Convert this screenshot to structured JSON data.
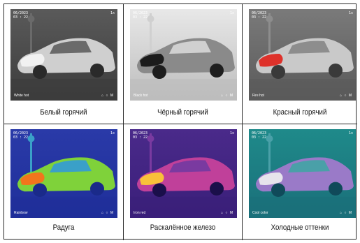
{
  "panels": [
    {
      "caption": "Белый горячий",
      "osd": {
        "date": "06/2023\n03 : 22",
        "status": "1x",
        "palette_label": "White hot",
        "icons": "⌂ ○ M"
      }
    },
    {
      "caption": "Чёрный горячий",
      "osd": {
        "date": "06/2023\n03 : 22",
        "status": "1x",
        "palette_label": "Black hot",
        "icons": "⌂ ○ M"
      }
    },
    {
      "caption": "Красный горячий",
      "osd": {
        "date": "06/2023\n03 : 22",
        "status": "1x",
        "palette_label": "Fire hot",
        "icons": "⌂ ○ M"
      }
    },
    {
      "caption": "Радуга",
      "osd": {
        "date": "06/2023\n03 : 22",
        "status": "1x",
        "palette_label": "Rainbow",
        "icons": "⌂ ○ M"
      }
    },
    {
      "caption": "Раскалённое железо",
      "osd": {
        "date": "06/2023\n03 : 22",
        "status": "1x",
        "palette_label": "Iron red",
        "icons": "⌂ ○ M"
      }
    },
    {
      "caption": "Холодные оттенки",
      "osd": {
        "date": "06/2023\n03 : 22",
        "status": "1x",
        "palette_label": "Cool color",
        "icons": "⌂ ○ M"
      }
    }
  ],
  "palettes": {
    "white_hot": {
      "sky": "#5a5a5a",
      "ground": "#3c3c3c",
      "body": "#cfcfcf",
      "glass": "#6a6a6a",
      "hot": "#f4f4f4",
      "wheel": "#2a2a2a"
    },
    "black_hot": {
      "sky": "#e8e8e8",
      "ground": "#bdbdbd",
      "body": "#8a8a8a",
      "glass": "#d0d0d0",
      "hot": "#101010",
      "wheel": "#1e1e1e"
    },
    "fire_hot": {
      "sky": "#7a7a7a",
      "ground": "#5a5a5a",
      "body": "#c9c9c9",
      "glass": "#8d8d8d",
      "hot": "#e02018",
      "wheel": "#3a3a3a"
    },
    "rainbow": {
      "sky": "#2a3aa8",
      "ground": "#1f2f9a",
      "body": "#7fd23a",
      "glass": "#3aa0c8",
      "hot": "#ff6a1a",
      "wheel": "#1a2a8a"
    },
    "iron_red": {
      "sky": "#4a2a8a",
      "ground": "#3a1f7a",
      "body": "#c0409a",
      "glass": "#7a3aa0",
      "hot": "#ffcf30",
      "wheel": "#1a0f4a"
    },
    "cool_color": {
      "sky": "#1f8a8a",
      "ground": "#1a6f7a",
      "body": "#9a7ac8",
      "glass": "#4aa0a8",
      "hot": "#f0f0f0",
      "wheel": "#104a5a"
    }
  }
}
